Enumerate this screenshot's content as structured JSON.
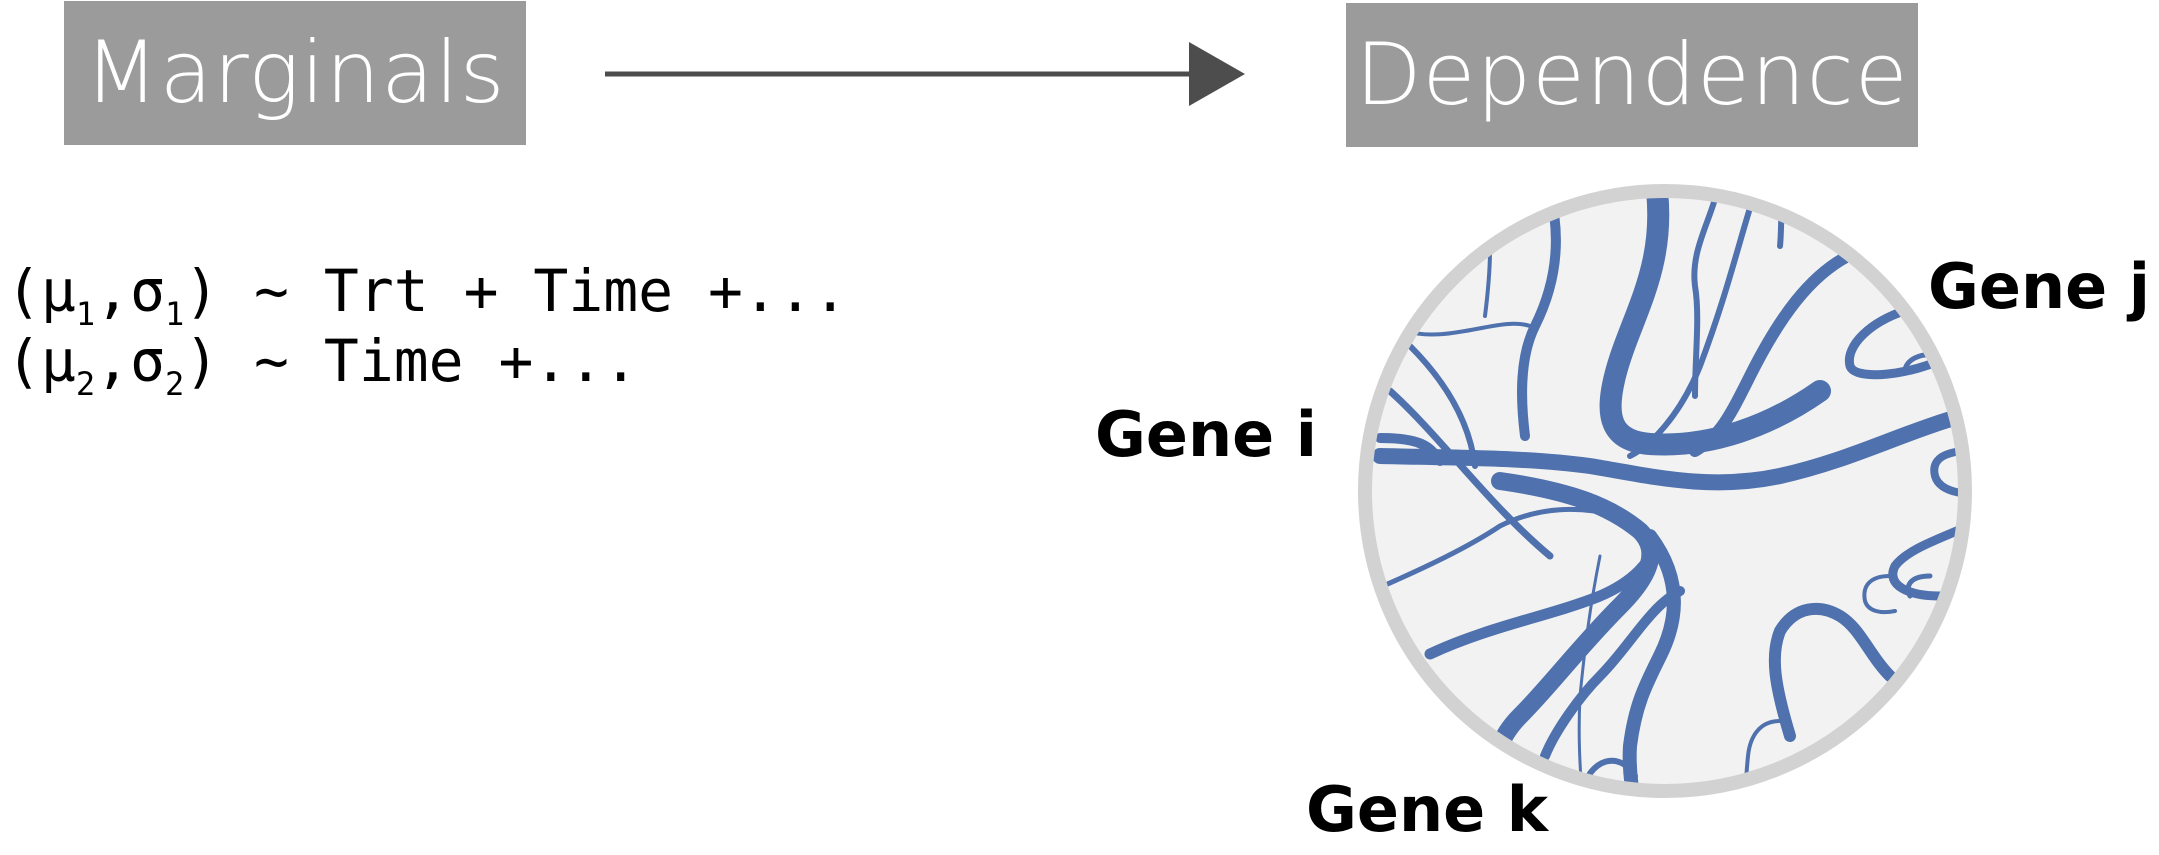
{
  "boxes": {
    "marginals": "Marginals",
    "dependence": "Dependence"
  },
  "formulas": [
    {
      "prefix": "(μ",
      "sub1": "1",
      "mid": ",σ",
      "sub2": "1",
      "suffix": ") ~ Trt + Time +..."
    },
    {
      "prefix": "(μ",
      "sub1": "2",
      "mid": ",σ",
      "sub2": "2",
      "suffix": ") ~ Time +..."
    }
  ],
  "genes": {
    "i": "Gene i",
    "j": "Gene j",
    "k": "Gene k"
  },
  "colors": {
    "box_fill": "#9b9b9b",
    "arrow": "#4d4d4d",
    "network_edge": "#4f71ad",
    "circle_fill": "#f2f2f2",
    "circle_border": "#d2d2d2"
  }
}
